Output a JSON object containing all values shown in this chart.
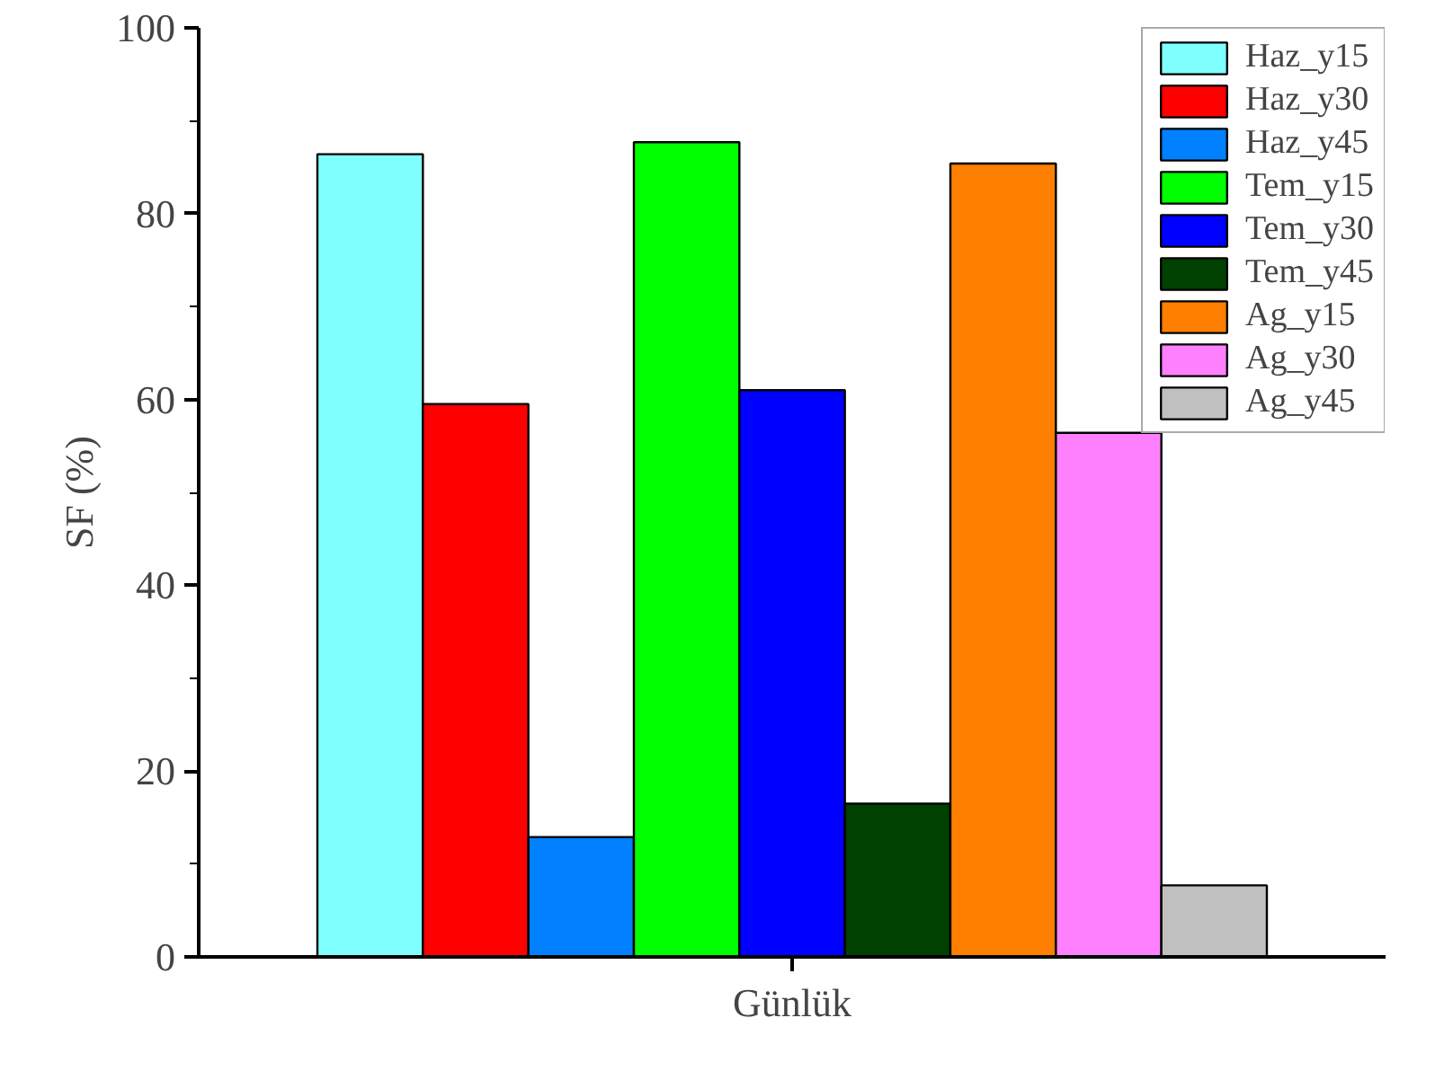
{
  "chart_data": {
    "type": "bar",
    "xlabel": "Günlük",
    "ylabel": "SF (%)",
    "categories": [
      null
    ],
    "series": [
      {
        "name": "Haz_y15",
        "color": "#80ffff",
        "values": [
          86.4
        ]
      },
      {
        "name": "Haz_y30",
        "color": "#ff0000",
        "values": [
          59.5
        ]
      },
      {
        "name": "Haz_y45",
        "color": "#0080ff",
        "values": [
          12.9
        ]
      },
      {
        "name": "Tem_y15",
        "color": "#00ff00",
        "values": [
          87.7
        ]
      },
      {
        "name": "Tem_y30",
        "color": "#0000ff",
        "values": [
          61.0
        ]
      },
      {
        "name": "Tem_y45",
        "color": "#004000",
        "values": [
          16.5
        ]
      },
      {
        "name": "Ag_y15",
        "color": "#ff8000",
        "values": [
          85.4
        ]
      },
      {
        "name": "Ag_y30",
        "color": "#ff80ff",
        "values": [
          56.4
        ]
      },
      {
        "name": "Ag_y45",
        "color": "#c0c0c0",
        "values": [
          7.7
        ]
      }
    ],
    "ylim": [
      0,
      100
    ],
    "yticks": [
      0,
      20,
      40,
      60,
      80,
      100
    ],
    "grid": false,
    "legend": "top right"
  }
}
